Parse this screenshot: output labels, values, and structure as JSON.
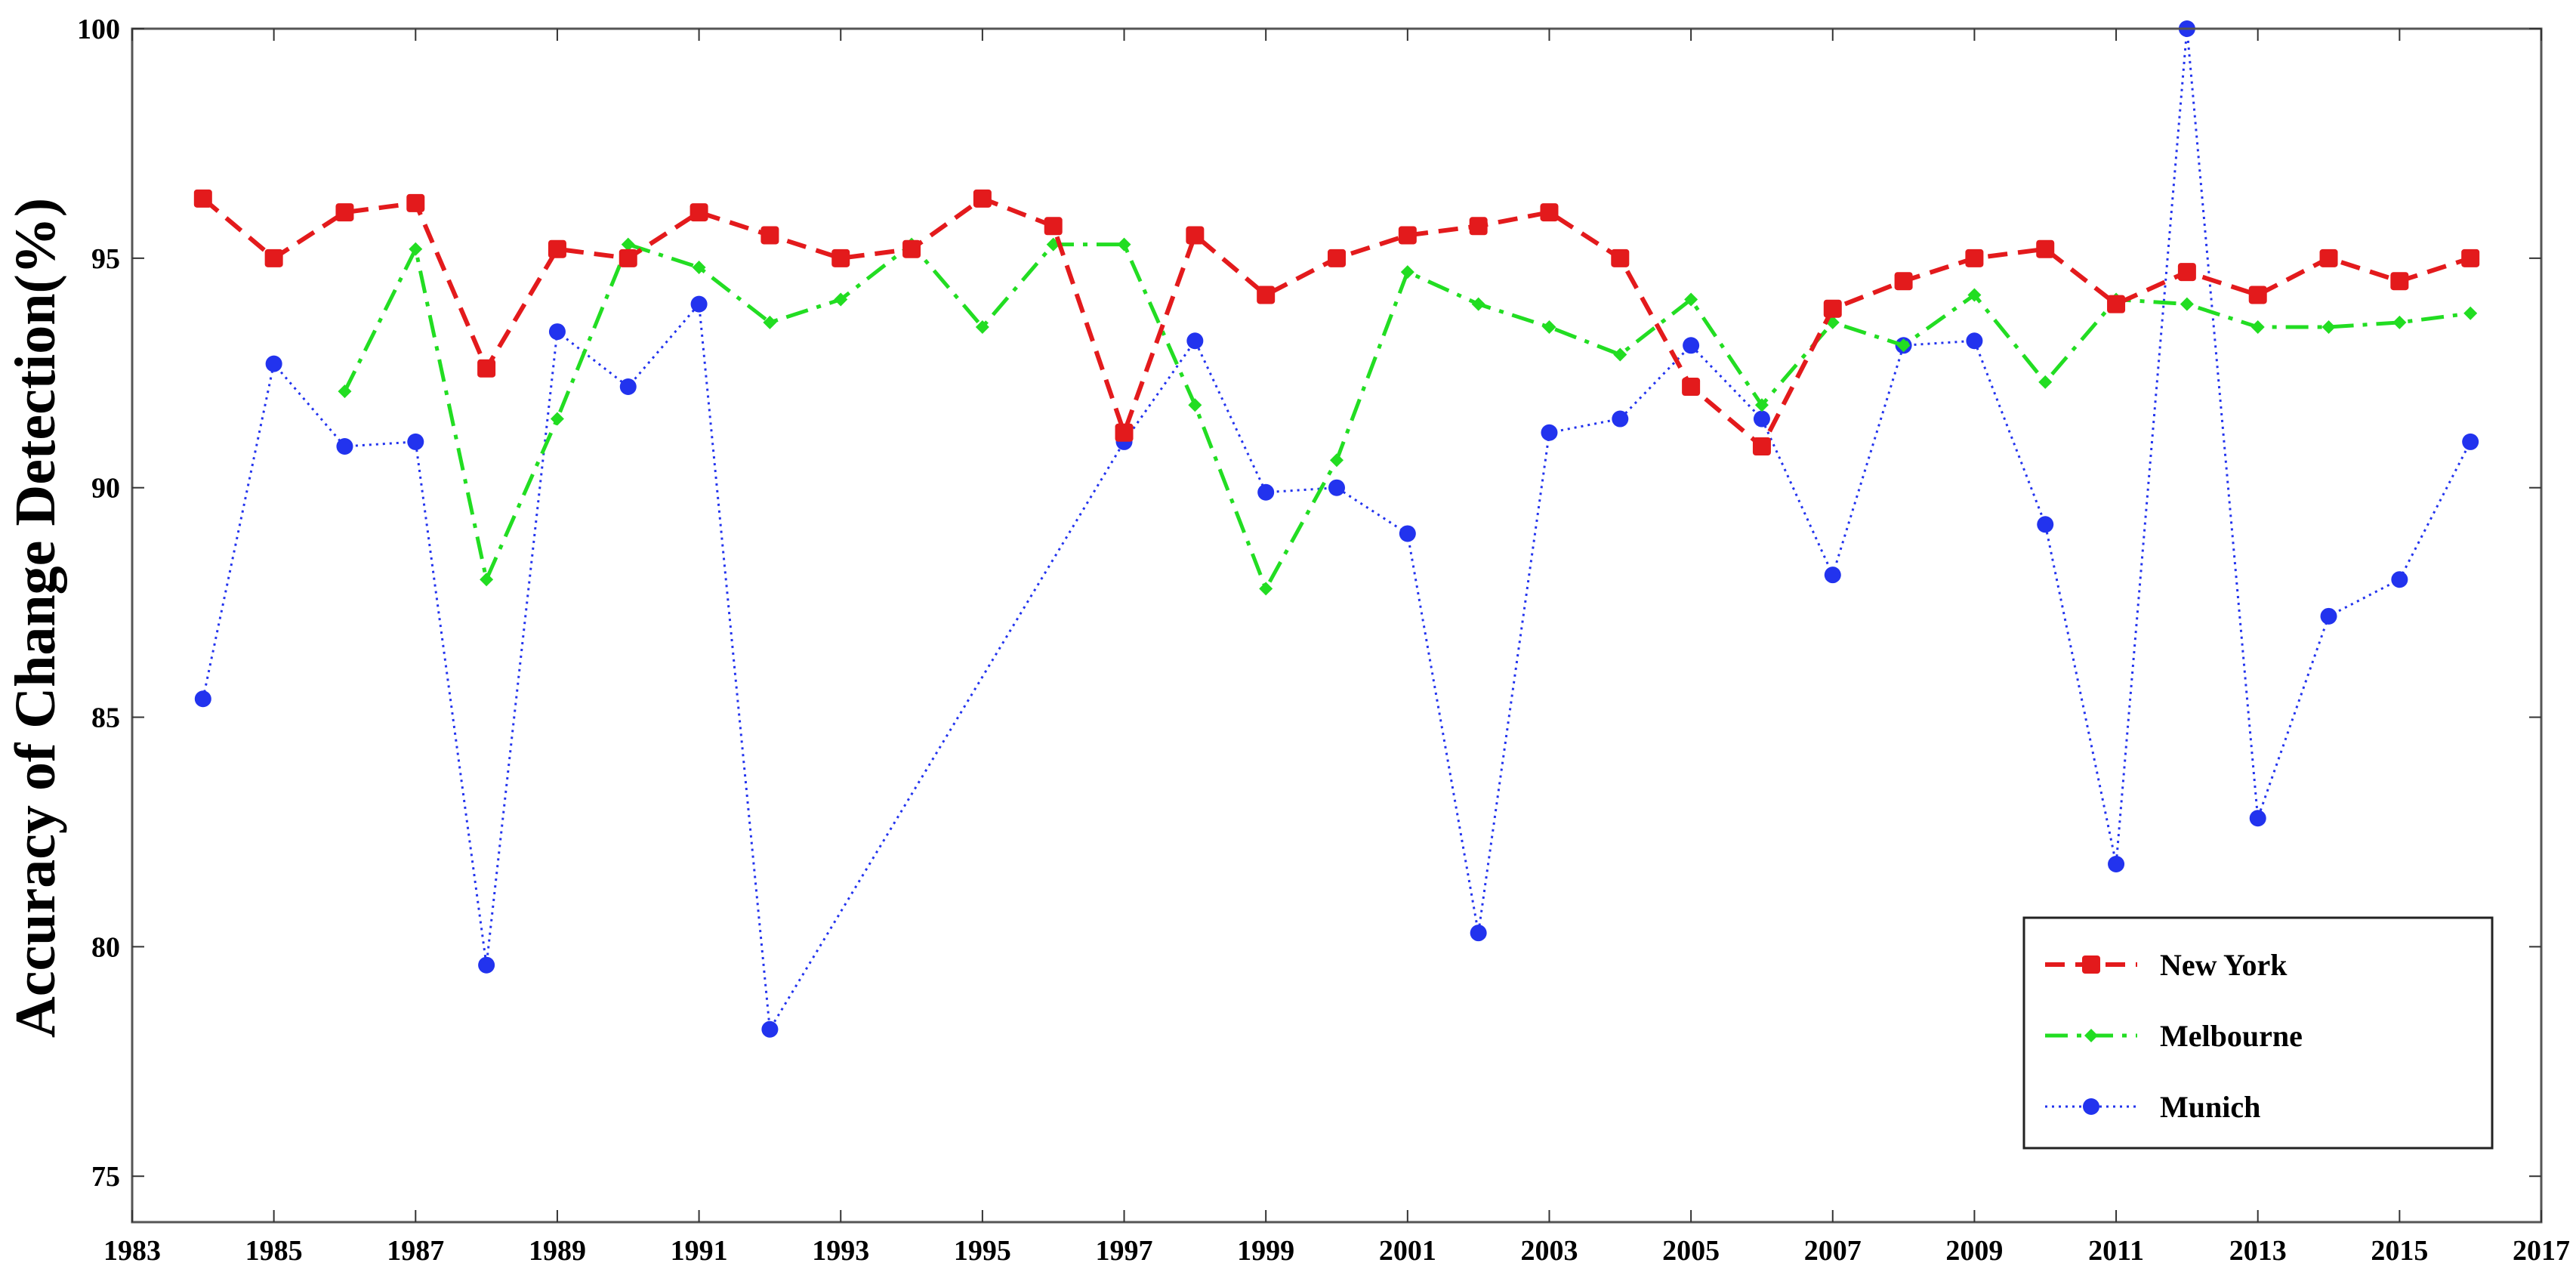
{
  "chart_data": {
    "type": "line",
    "title": "",
    "xlabel": "",
    "ylabel": "Accuracy of Change Detection(%)",
    "xlim": [
      1983,
      2017
    ],
    "ylim": [
      74,
      100
    ],
    "xticks": [
      1983,
      1985,
      1987,
      1989,
      1991,
      1993,
      1995,
      1997,
      1999,
      2001,
      2003,
      2005,
      2007,
      2009,
      2011,
      2013,
      2015,
      2017
    ],
    "yticks": [
      75,
      80,
      85,
      90,
      95,
      100
    ],
    "grid": false,
    "legend_position": "bottom-right",
    "series": [
      {
        "name": "New York",
        "color": "#e31a1c",
        "line_style": "dashed",
        "marker": "square",
        "x": [
          1984,
          1985,
          1986,
          1987,
          1988,
          1989,
          1990,
          1991,
          1992,
          1993,
          1994,
          1995,
          1996,
          1997,
          1998,
          1999,
          2000,
          2001,
          2002,
          2003,
          2004,
          2005,
          2006,
          2007,
          2008,
          2009,
          2010,
          2011,
          2012,
          2013,
          2014,
          2015,
          2016
        ],
        "y": [
          96.3,
          95.0,
          96.0,
          96.2,
          92.6,
          95.2,
          95.0,
          96.0,
          95.5,
          95.0,
          95.2,
          96.3,
          95.7,
          91.2,
          95.5,
          94.2,
          95.0,
          95.5,
          95.7,
          96.0,
          95.0,
          92.2,
          90.9,
          93.9,
          94.5,
          95.0,
          95.2,
          94.0,
          94.7,
          94.2,
          95.0,
          94.5,
          95.0
        ]
      },
      {
        "name": "Melbourne",
        "color": "#22dd22",
        "line_style": "dash-dot",
        "marker": "diamond",
        "x": [
          1986,
          1987,
          1988,
          1989,
          1990,
          1991,
          1992,
          1993,
          1994,
          1995,
          1996,
          1997,
          1998,
          1999,
          2000,
          2001,
          2002,
          2003,
          2004,
          2005,
          2006,
          2007,
          2008,
          2009,
          2010,
          2011,
          2012,
          2013,
          2014,
          2015,
          2016
        ],
        "y": [
          92.1,
          95.2,
          88.0,
          91.5,
          95.3,
          94.8,
          93.6,
          94.1,
          95.3,
          93.5,
          95.3,
          95.3,
          91.8,
          87.8,
          90.6,
          94.7,
          94.0,
          93.5,
          92.9,
          94.1,
          91.8,
          93.6,
          93.1,
          94.2,
          92.3,
          94.1,
          94.0,
          93.5,
          93.5,
          93.6,
          93.8
        ]
      },
      {
        "name": "Munich",
        "color": "#2233ee",
        "line_style": "dotted",
        "marker": "circle",
        "x": [
          1984,
          1985,
          1986,
          1987,
          1988,
          1989,
          1990,
          1991,
          1992,
          1997,
          1998,
          1999,
          2000,
          2001,
          2002,
          2003,
          2004,
          2005,
          2006,
          2007,
          2008,
          2009,
          2010,
          2011,
          2012,
          2013,
          2014,
          2015,
          2016
        ],
        "y": [
          85.4,
          92.7,
          90.9,
          91.0,
          79.6,
          93.4,
          92.2,
          94.0,
          78.2,
          91.0,
          93.2,
          89.9,
          90.0,
          89.0,
          80.3,
          91.2,
          91.5,
          93.1,
          91.5,
          88.1,
          93.1,
          93.2,
          89.2,
          81.8,
          100.0,
          82.8,
          87.2,
          88.0,
          91.0
        ]
      }
    ]
  }
}
